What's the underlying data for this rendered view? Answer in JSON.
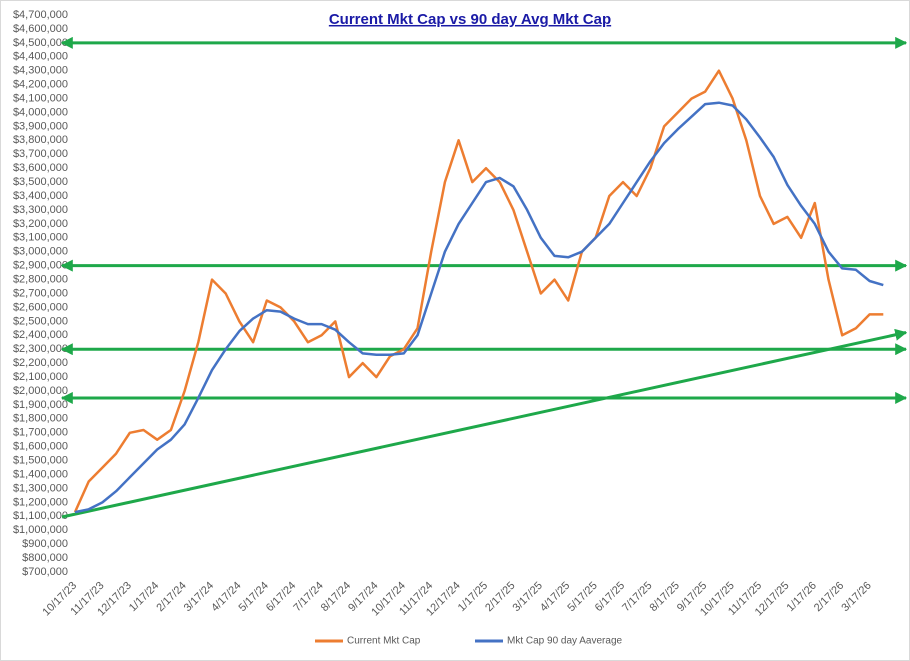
{
  "chart_data": {
    "type": "line",
    "title": "Current Mkt Cap vs 90 day Avg Mkt Cap",
    "categories": [
      "10/17/23",
      null,
      "11/17/23",
      null,
      "12/17/23",
      null,
      "1/17/24",
      null,
      "2/17/24",
      null,
      "3/17/24",
      null,
      "4/17/24",
      null,
      "5/17/24",
      null,
      "6/17/24",
      null,
      "7/17/24",
      null,
      "8/17/24",
      null,
      "9/17/24",
      null,
      "10/17/24",
      null,
      "11/17/24",
      null,
      "12/17/24",
      null,
      "1/17/25",
      null,
      "2/17/25",
      null,
      "3/17/25",
      null,
      "4/17/25",
      null,
      "5/17/25",
      null,
      "6/17/25",
      null,
      "7/17/25",
      null,
      "8/17/25",
      null,
      "9/17/25",
      null,
      "10/17/25",
      null,
      "11/17/25",
      null,
      "12/17/25",
      null,
      "1/17/26",
      null,
      "2/17/26",
      null,
      "3/17/26",
      null
    ],
    "series": [
      {
        "name": "Current Mkt Cap",
        "color": "#ed7d31",
        "values": [
          1130000,
          1350000,
          1450000,
          1550000,
          1700000,
          1720000,
          1650000,
          1720000,
          2000000,
          2350000,
          2800000,
          2700000,
          2500000,
          2350000,
          2650000,
          2600000,
          2500000,
          2350000,
          2400000,
          2500000,
          2100000,
          2200000,
          2100000,
          2250000,
          2300000,
          2450000,
          3000000,
          3500000,
          3800000,
          3500000,
          3600000,
          3500000,
          3300000,
          3000000,
          2700000,
          2800000,
          2650000,
          3000000,
          3100000,
          3400000,
          3500000,
          3400000,
          3600000,
          3900000,
          4000000,
          4100000,
          4150000,
          4300000,
          4100000,
          3800000,
          3400000,
          3200000,
          3250000,
          3100000,
          3350000,
          2800000,
          2400000,
          2450000,
          2550000,
          2550000
        ]
      },
      {
        "name": "Mkt Cap 90 day Aaverage",
        "color": "#4472c4",
        "values": [
          1130000,
          1150000,
          1200000,
          1280000,
          1380000,
          1480000,
          1580000,
          1650000,
          1760000,
          1950000,
          2150000,
          2300000,
          2430000,
          2520000,
          2580000,
          2570000,
          2520000,
          2480000,
          2480000,
          2440000,
          2350000,
          2270000,
          2260000,
          2260000,
          2270000,
          2400000,
          2700000,
          3000000,
          3200000,
          3350000,
          3500000,
          3530000,
          3470000,
          3300000,
          3100000,
          2970000,
          2960000,
          3000000,
          3100000,
          3200000,
          3350000,
          3500000,
          3650000,
          3780000,
          3880000,
          3970000,
          4060000,
          4070000,
          4050000,
          3950000,
          3820000,
          3680000,
          3480000,
          3330000,
          3200000,
          3000000,
          2880000,
          2870000,
          2790000,
          2760000
        ]
      }
    ],
    "ylim": [
      700000,
      4700000
    ],
    "yticks": [
      {
        "value": 700000,
        "label": "$700,000"
      },
      {
        "value": 800000,
        "label": "$800,000"
      },
      {
        "value": 900000,
        "label": "$900,000"
      },
      {
        "value": 1000000,
        "label": "$1,000,000"
      },
      {
        "value": 1100000,
        "label": "$1,100,000"
      },
      {
        "value": 1200000,
        "label": "$1,200,000"
      },
      {
        "value": 1300000,
        "label": "$1,300,000"
      },
      {
        "value": 1400000,
        "label": "$1,400,000"
      },
      {
        "value": 1500000,
        "label": "$1,500,000"
      },
      {
        "value": 1600000,
        "label": "$1,600,000"
      },
      {
        "value": 1700000,
        "label": "$1,700,000"
      },
      {
        "value": 1800000,
        "label": "$1,800,000"
      },
      {
        "value": 1900000,
        "label": "$1,900,000"
      },
      {
        "value": 2000000,
        "label": "$2,000,000"
      },
      {
        "value": 2100000,
        "label": "$2,100,000"
      },
      {
        "value": 2200000,
        "label": "$2,200,000"
      },
      {
        "value": 2300000,
        "label": "$2,300,000"
      },
      {
        "value": 2400000,
        "label": "$2,400,000"
      },
      {
        "value": 2500000,
        "label": "$2,500,000"
      },
      {
        "value": 2600000,
        "label": "$2,600,000"
      },
      {
        "value": 2700000,
        "label": "$2,700,000"
      },
      {
        "value": 2800000,
        "label": "$2,800,000"
      },
      {
        "value": 2900000,
        "label": "$2,900,000"
      },
      {
        "value": 3000000,
        "label": "$3,000,000"
      },
      {
        "value": 3100000,
        "label": "$3,100,000"
      },
      {
        "value": 3200000,
        "label": "$3,200,000"
      },
      {
        "value": 3300000,
        "label": "$3,300,000"
      },
      {
        "value": 3400000,
        "label": "$3,400,000"
      },
      {
        "value": 3500000,
        "label": "$3,500,000"
      },
      {
        "value": 3600000,
        "label": "$3,600,000"
      },
      {
        "value": 3700000,
        "label": "$3,700,000"
      },
      {
        "value": 3800000,
        "label": "$3,800,000"
      },
      {
        "value": 3900000,
        "label": "$3,900,000"
      },
      {
        "value": 4000000,
        "label": "$4,000,000"
      },
      {
        "value": 4100000,
        "label": "$4,100,000"
      },
      {
        "value": 4200000,
        "label": "$4,200,000"
      },
      {
        "value": 4300000,
        "label": "$4,300,000"
      },
      {
        "value": 4400000,
        "label": "$4,400,000"
      },
      {
        "value": 4500000,
        "label": "$4,500,000"
      },
      {
        "value": 4600000,
        "label": "$4,600,000"
      },
      {
        "value": 4700000,
        "label": "$4,700,000"
      }
    ],
    "grid": false,
    "legend": "bottom",
    "annotation_color": "#1ea84a",
    "reference_lines": [
      4500000,
      2900000,
      2300000,
      1950000
    ],
    "trend_line": {
      "start": 1095000,
      "end": 2420000
    }
  }
}
